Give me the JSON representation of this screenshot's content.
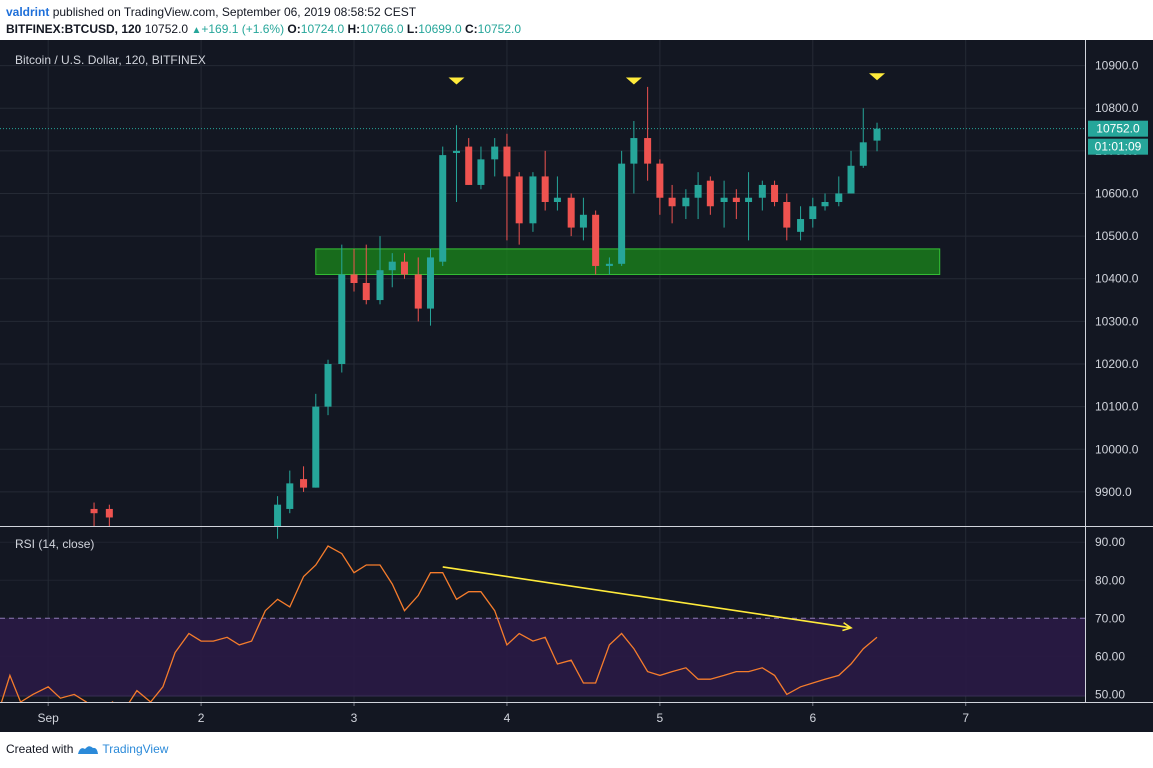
{
  "header": {
    "author": "valdrint",
    "published_text": "published on TradingView.com, September 06, 2019 08:58:52 CEST",
    "symbol": "BITFINEX:BTCUSD, 120",
    "last": "10752.0",
    "change": "+169.1 (+1.6%)",
    "o_label": "O:",
    "o": "10724.0",
    "h_label": "H:",
    "h": "10766.0",
    "l_label": "L:",
    "l": "10699.0",
    "c_label": "C:",
    "c": "10752.0"
  },
  "footer": {
    "created_with": "Created with",
    "brand": "TradingView"
  },
  "colors": {
    "background": "#131722",
    "bull": "#26a69a",
    "bear": "#ef5350",
    "zone": "#1b8a1b",
    "rsi_line": "#f57c2c",
    "rsi_band": "#2a1a45",
    "trendline": "#ffeb3b",
    "marker": "#ffeb3b",
    "grid": "#252a35",
    "price_line": "#26a69a"
  },
  "chart_data": [
    {
      "type": "candlestick",
      "title": "Bitcoin / U.S. Dollar, 120, BITFINEX",
      "ylim": [
        9820,
        10960
      ],
      "y_ticks": [
        "10900.0",
        "10800.0",
        "10700.0",
        "10600.0",
        "10500.0",
        "10400.0",
        "10300.0",
        "10200.0",
        "10100.0",
        "10000.0",
        "9900.0"
      ],
      "x_ticks": [
        "Sep",
        "2",
        "3",
        "4",
        "5",
        "6",
        "7"
      ],
      "x_range_days": [
        0.685,
        7.78
      ],
      "last_price_label": "10752.0",
      "countdown_label": "01:01:09",
      "candles": [
        {
          "t": 1.3,
          "o": 9860,
          "h": 9875,
          "l": 9820,
          "c": 9850
        },
        {
          "t": 1.4,
          "o": 9860,
          "h": 9870,
          "l": 9820,
          "c": 9840
        },
        {
          "t": 2.5,
          "o": 9820,
          "h": 9890,
          "l": 9790,
          "c": 9870
        },
        {
          "t": 2.58,
          "o": 9860,
          "h": 9950,
          "l": 9850,
          "c": 9920
        },
        {
          "t": 2.67,
          "o": 9930,
          "h": 9960,
          "l": 9900,
          "c": 9910
        },
        {
          "t": 2.75,
          "o": 9910,
          "h": 10130,
          "l": 9910,
          "c": 10100
        },
        {
          "t": 2.83,
          "o": 10100,
          "h": 10210,
          "l": 10080,
          "c": 10200
        },
        {
          "t": 2.92,
          "o": 10200,
          "h": 10480,
          "l": 10180,
          "c": 10410
        },
        {
          "t": 3.0,
          "o": 10410,
          "h": 10470,
          "l": 10370,
          "c": 10390
        },
        {
          "t": 3.08,
          "o": 10390,
          "h": 10480,
          "l": 10340,
          "c": 10350
        },
        {
          "t": 3.17,
          "o": 10350,
          "h": 10500,
          "l": 10340,
          "c": 10420
        },
        {
          "t": 3.25,
          "o": 10420,
          "h": 10460,
          "l": 10380,
          "c": 10440
        },
        {
          "t": 3.33,
          "o": 10440,
          "h": 10460,
          "l": 10400,
          "c": 10410
        },
        {
          "t": 3.42,
          "o": 10410,
          "h": 10450,
          "l": 10300,
          "c": 10330
        },
        {
          "t": 3.5,
          "o": 10330,
          "h": 10470,
          "l": 10290,
          "c": 10450
        },
        {
          "t": 3.58,
          "o": 10440,
          "h": 10710,
          "l": 10430,
          "c": 10690
        },
        {
          "t": 3.67,
          "o": 10695,
          "h": 10760,
          "l": 10580,
          "c": 10700
        },
        {
          "t": 3.75,
          "o": 10710,
          "h": 10730,
          "l": 10620,
          "c": 10620
        },
        {
          "t": 3.83,
          "o": 10620,
          "h": 10710,
          "l": 10610,
          "c": 10680
        },
        {
          "t": 3.92,
          "o": 10680,
          "h": 10730,
          "l": 10640,
          "c": 10710
        },
        {
          "t": 4.0,
          "o": 10710,
          "h": 10740,
          "l": 10490,
          "c": 10640
        },
        {
          "t": 4.08,
          "o": 10640,
          "h": 10650,
          "l": 10480,
          "c": 10530
        },
        {
          "t": 4.17,
          "o": 10530,
          "h": 10650,
          "l": 10510,
          "c": 10640
        },
        {
          "t": 4.25,
          "o": 10640,
          "h": 10700,
          "l": 10560,
          "c": 10580
        },
        {
          "t": 4.33,
          "o": 10580,
          "h": 10640,
          "l": 10560,
          "c": 10590
        },
        {
          "t": 4.42,
          "o": 10590,
          "h": 10600,
          "l": 10500,
          "c": 10520
        },
        {
          "t": 4.5,
          "o": 10520,
          "h": 10590,
          "l": 10490,
          "c": 10550
        },
        {
          "t": 4.58,
          "o": 10550,
          "h": 10560,
          "l": 10410,
          "c": 10430
        },
        {
          "t": 4.67,
          "o": 10430,
          "h": 10450,
          "l": 10410,
          "c": 10435
        },
        {
          "t": 4.75,
          "o": 10435,
          "h": 10700,
          "l": 10430,
          "c": 10670
        },
        {
          "t": 4.83,
          "o": 10670,
          "h": 10770,
          "l": 10600,
          "c": 10730
        },
        {
          "t": 4.92,
          "o": 10730,
          "h": 10850,
          "l": 10630,
          "c": 10670
        },
        {
          "t": 5.0,
          "o": 10670,
          "h": 10680,
          "l": 10550,
          "c": 10590
        },
        {
          "t": 5.08,
          "o": 10590,
          "h": 10620,
          "l": 10530,
          "c": 10570
        },
        {
          "t": 5.17,
          "o": 10570,
          "h": 10610,
          "l": 10540,
          "c": 10590
        },
        {
          "t": 5.25,
          "o": 10590,
          "h": 10650,
          "l": 10540,
          "c": 10620
        },
        {
          "t": 5.33,
          "o": 10630,
          "h": 10640,
          "l": 10550,
          "c": 10570
        },
        {
          "t": 5.42,
          "o": 10580,
          "h": 10630,
          "l": 10520,
          "c": 10590
        },
        {
          "t": 5.5,
          "o": 10590,
          "h": 10610,
          "l": 10540,
          "c": 10580
        },
        {
          "t": 5.58,
          "o": 10580,
          "h": 10650,
          "l": 10490,
          "c": 10590
        },
        {
          "t": 5.67,
          "o": 10590,
          "h": 10630,
          "l": 10560,
          "c": 10620
        },
        {
          "t": 5.75,
          "o": 10620,
          "h": 10630,
          "l": 10570,
          "c": 10580
        },
        {
          "t": 5.83,
          "o": 10580,
          "h": 10600,
          "l": 10490,
          "c": 10520
        },
        {
          "t": 5.92,
          "o": 10510,
          "h": 10570,
          "l": 10490,
          "c": 10540
        },
        {
          "t": 6.0,
          "o": 10540,
          "h": 10590,
          "l": 10520,
          "c": 10570
        },
        {
          "t": 6.08,
          "o": 10570,
          "h": 10600,
          "l": 10560,
          "c": 10580
        },
        {
          "t": 6.17,
          "o": 10580,
          "h": 10640,
          "l": 10570,
          "c": 10600
        },
        {
          "t": 6.25,
          "o": 10600,
          "h": 10700,
          "l": 10600,
          "c": 10665
        },
        {
          "t": 6.33,
          "o": 10665,
          "h": 10800,
          "l": 10660,
          "c": 10720
        },
        {
          "t": 6.42,
          "o": 10724,
          "h": 10766,
          "l": 10699,
          "c": 10752
        }
      ],
      "zone": {
        "from_t": 2.75,
        "to_t": 6.83,
        "low": 10410,
        "high": 10470
      },
      "markers": [
        {
          "t": 3.67,
          "price": 10790
        },
        {
          "t": 4.83,
          "price": 10790
        },
        {
          "t": 6.42,
          "price": 10800
        }
      ]
    },
    {
      "type": "line",
      "title": "RSI (14, close)",
      "ylim": [
        48,
        94
      ],
      "y_ticks": [
        "90.00",
        "80.00",
        "70.00",
        "60.00",
        "50.00"
      ],
      "overbought": 70,
      "oversold": 30,
      "series": [
        {
          "x": [
            0.68,
            0.75,
            0.82,
            0.9,
            1.0,
            1.08,
            1.17,
            1.25,
            1.33,
            1.42,
            1.5,
            1.58,
            1.67,
            1.75,
            1.83,
            1.92,
            2.0,
            2.08,
            2.17,
            2.25,
            2.33,
            2.42,
            2.5,
            2.58,
            2.67,
            2.75,
            2.83,
            2.92,
            3.0,
            3.08,
            3.17,
            3.25,
            3.33,
            3.42,
            3.5,
            3.58,
            3.67,
            3.75,
            3.83,
            3.92,
            4.0,
            4.08,
            4.17,
            4.25,
            4.33,
            4.42,
            4.5,
            4.58,
            4.67,
            4.75,
            4.83,
            4.92,
            5.0,
            5.08,
            5.17,
            5.25,
            5.33,
            5.42,
            5.5,
            5.58,
            5.67,
            5.75,
            5.83,
            5.92,
            6.0,
            6.08,
            6.17,
            6.25,
            6.33,
            6.42
          ],
          "y": [
            46,
            55,
            48,
            50,
            52,
            49,
            50,
            48,
            44,
            48,
            46,
            51,
            48,
            52,
            61,
            66,
            64,
            64,
            65,
            63,
            64,
            72,
            75,
            73,
            81,
            84,
            89,
            87,
            82,
            84,
            84,
            79,
            72,
            76,
            82,
            82,
            75,
            77,
            77,
            72,
            63,
            66,
            64,
            65,
            58,
            59,
            53,
            53,
            63,
            66,
            62,
            56,
            55,
            56,
            57,
            54,
            54,
            55,
            56,
            56,
            57,
            55,
            50,
            52,
            53,
            54,
            55,
            58,
            62,
            65
          ]
        }
      ],
      "trendline": {
        "x1": 3.58,
        "y1": 83.5,
        "x2": 6.25,
        "y2": 67.5
      }
    }
  ]
}
